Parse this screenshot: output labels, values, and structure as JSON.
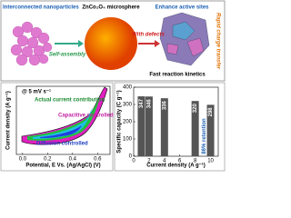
{
  "diagram": {
    "left_label": "Interconnected nanoparticles",
    "center_label": "ZnCo₂O₄ microsphere",
    "right_label": "Enhance active sites",
    "arrow1_label": "Self-assembly",
    "arrow2_label": "With defects",
    "side_label": "Rapid charge transfer",
    "bottom_label": "Fast reaction kinetics"
  },
  "chart_data": [
    {
      "type": "cv",
      "ylabel": "Current density (A g⁻¹)",
      "xlabel": "Potential, E Vs. (Ag/AgCl) (V)",
      "xlim": [
        -0.05,
        0.7
      ],
      "xticks": [
        {
          "value": 0,
          "label": "0.0"
        },
        0.2,
        0.4,
        0.6
      ],
      "annotations": [
        "@ 5 mV s⁻¹",
        "Actual current contribution",
        "Capacitive controlled",
        "Diffusion controlled"
      ]
    },
    {
      "type": "bar",
      "ylabel": "Specific capacity (C g⁻¹)",
      "xlabel": "Current density (A g⁻¹)",
      "x": [
        1,
        2,
        4,
        8,
        10
      ],
      "values": [
        347,
        346,
        336,
        320,
        298
      ],
      "color": "#555555",
      "xlim": [
        0,
        11
      ],
      "xticks": [
        0,
        2,
        4,
        6,
        8,
        10
      ],
      "ylim": [
        0,
        400
      ],
      "yticks": [
        0,
        100,
        200,
        300,
        400
      ],
      "annotation": "86% retention"
    }
  ]
}
